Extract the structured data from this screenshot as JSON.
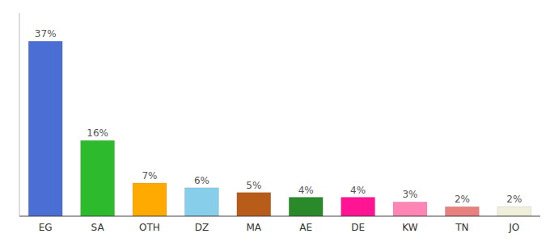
{
  "chart_data": {
    "type": "bar",
    "categories": [
      "EG",
      "SA",
      "OTH",
      "DZ",
      "MA",
      "AE",
      "DE",
      "KW",
      "TN",
      "JO"
    ],
    "values": [
      37,
      16,
      7,
      6,
      5,
      4,
      4,
      3,
      2,
      2
    ],
    "value_labels": [
      "37%",
      "16%",
      "7%",
      "6%",
      "5%",
      "4%",
      "4%",
      "3%",
      "2%",
      "2%"
    ],
    "colors": [
      "#4a6ed4",
      "#2dbb2d",
      "#ffaa00",
      "#87ceeb",
      "#b85c1a",
      "#2a8a2a",
      "#ff1493",
      "#ff85b5",
      "#e88080",
      "#f0efdc"
    ],
    "ylim": [
      0,
      43
    ],
    "data_labels": true,
    "tick_labels": "x",
    "grid": false
  }
}
